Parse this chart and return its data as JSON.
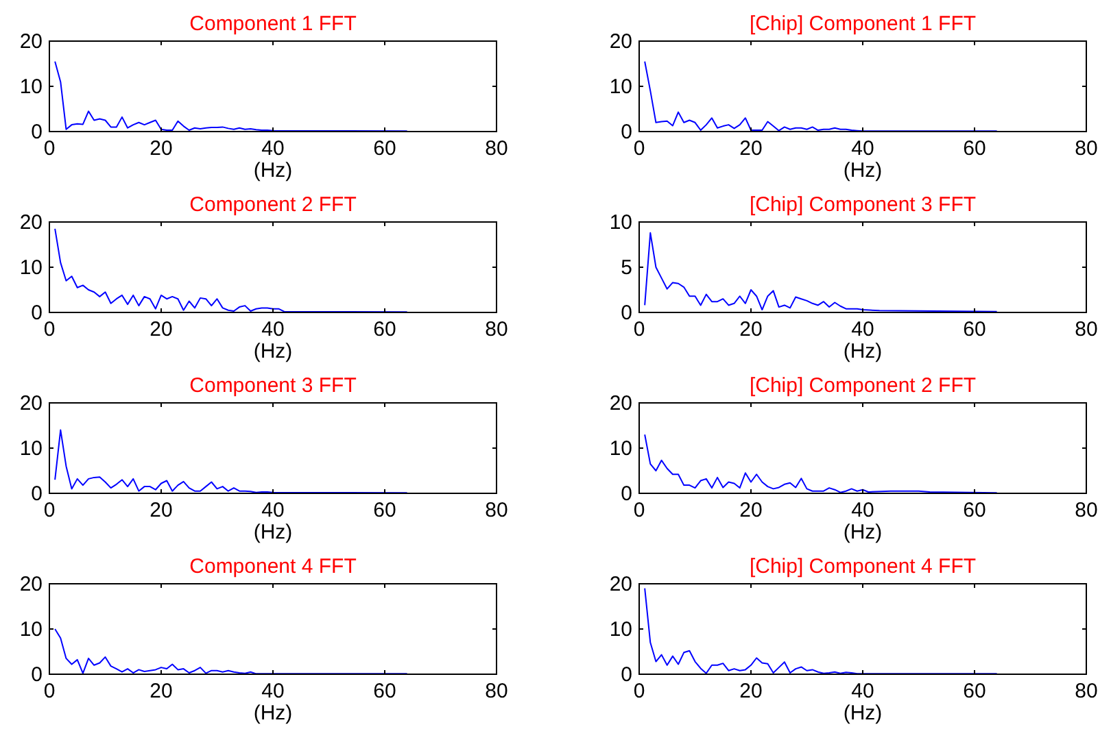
{
  "chart_data": [
    {
      "type": "line",
      "title": "Component 1 FFT",
      "xlabel": "(Hz)",
      "xlim": [
        0,
        80
      ],
      "xticks": [
        0,
        20,
        40,
        60,
        80
      ],
      "ylim": [
        0,
        20
      ],
      "yticks": [
        0,
        10,
        20
      ],
      "grid": false,
      "series": [
        {
          "color": "#0000ff",
          "x": [
            1,
            2,
            3,
            4,
            5,
            6,
            7,
            8,
            9,
            10,
            11,
            12,
            13,
            14,
            15,
            16,
            17,
            18,
            19,
            20,
            21,
            22,
            23,
            24,
            25,
            26,
            27,
            28,
            29,
            30,
            31,
            32,
            33,
            34,
            35,
            36,
            37,
            38,
            39,
            40,
            64
          ],
          "values": [
            15.5,
            11,
            0.5,
            1.5,
            1.7,
            1.6,
            4.5,
            2.5,
            2.8,
            2.5,
            1,
            1,
            3.2,
            0.8,
            1.5,
            2,
            1.5,
            2,
            2.5,
            0.5,
            0.3,
            0.3,
            2.3,
            1.2,
            0.3,
            0.8,
            0.6,
            0.8,
            0.9,
            0.9,
            1,
            0.7,
            0.5,
            0.8,
            0.5,
            0.6,
            0.4,
            0.3,
            0.3,
            0.2,
            0.1
          ]
        }
      ]
    },
    {
      "type": "line",
      "title": "[Chip] Component 1 FFT",
      "xlabel": "(Hz)",
      "xlim": [
        0,
        80
      ],
      "xticks": [
        0,
        20,
        40,
        60,
        80
      ],
      "ylim": [
        0,
        20
      ],
      "yticks": [
        0,
        10,
        20
      ],
      "grid": false,
      "series": [
        {
          "color": "#0000ff",
          "x": [
            1,
            2,
            3,
            4,
            5,
            6,
            7,
            8,
            9,
            10,
            11,
            12,
            13,
            14,
            15,
            16,
            17,
            18,
            19,
            20,
            21,
            22,
            23,
            24,
            25,
            26,
            27,
            28,
            29,
            30,
            31,
            32,
            33,
            34,
            35,
            36,
            37,
            38,
            39,
            40,
            64
          ],
          "values": [
            15.5,
            9,
            2,
            2.2,
            2.3,
            1.3,
            4.3,
            2,
            2.5,
            2,
            0.3,
            1.5,
            3,
            0.8,
            1.2,
            1.5,
            0.7,
            1.5,
            3,
            0.3,
            0.3,
            0.3,
            2.2,
            1.2,
            0.2,
            1,
            0.5,
            0.8,
            0.8,
            0.5,
            1,
            0.3,
            0.5,
            0.5,
            0.8,
            0.5,
            0.5,
            0.3,
            0.2,
            0.1,
            0.1
          ]
        }
      ]
    },
    {
      "type": "line",
      "title": "Component 2 FFT",
      "xlabel": "(Hz)",
      "xlim": [
        0,
        80
      ],
      "xticks": [
        0,
        20,
        40,
        60,
        80
      ],
      "ylim": [
        0,
        20
      ],
      "yticks": [
        0,
        10,
        20
      ],
      "grid": false,
      "series": [
        {
          "color": "#0000ff",
          "x": [
            1,
            2,
            3,
            4,
            5,
            6,
            7,
            8,
            9,
            10,
            11,
            12,
            13,
            14,
            15,
            16,
            17,
            18,
            19,
            20,
            21,
            22,
            23,
            24,
            25,
            26,
            27,
            28,
            29,
            30,
            31,
            32,
            33,
            34,
            35,
            36,
            37,
            38,
            39,
            40,
            41,
            42,
            64
          ],
          "values": [
            18.5,
            11,
            7,
            8,
            5.5,
            6,
            5,
            4.5,
            3.5,
            4.5,
            2,
            3,
            3.8,
            1.8,
            3.8,
            1.5,
            3.5,
            3,
            0.8,
            3.8,
            3,
            3.5,
            3,
            0.5,
            2.5,
            1,
            3.2,
            3,
            1.5,
            3,
            1,
            0.5,
            0.3,
            1.2,
            1.5,
            0.3,
            0.8,
            1,
            1,
            0.8,
            0.8,
            0.2,
            0.1
          ]
        }
      ]
    },
    {
      "type": "line",
      "title": "[Chip] Component 3 FFT",
      "xlabel": "(Hz)",
      "xlim": [
        0,
        80
      ],
      "xticks": [
        0,
        20,
        40,
        60,
        80
      ],
      "ylim": [
        0,
        10
      ],
      "yticks": [
        0,
        5,
        10
      ],
      "grid": false,
      "series": [
        {
          "color": "#0000ff",
          "x": [
            1,
            2,
            3,
            4,
            5,
            6,
            7,
            8,
            9,
            10,
            11,
            12,
            13,
            14,
            15,
            16,
            17,
            18,
            19,
            20,
            21,
            22,
            23,
            24,
            25,
            26,
            27,
            28,
            29,
            30,
            31,
            32,
            33,
            34,
            35,
            36,
            37,
            38,
            39,
            40,
            43,
            64
          ],
          "values": [
            0.8,
            8.8,
            5,
            3.8,
            2.6,
            3.3,
            3.2,
            2.8,
            1.8,
            1.8,
            0.8,
            2,
            1.2,
            1.2,
            1.5,
            0.8,
            1,
            1.8,
            1,
            2.5,
            1.8,
            0.3,
            1.8,
            2.4,
            0.6,
            0.8,
            0.5,
            1.7,
            1.5,
            1.3,
            1,
            0.8,
            1.2,
            0.6,
            1.1,
            0.7,
            0.4,
            0.4,
            0.4,
            0.3,
            0.2,
            0.1
          ]
        }
      ]
    },
    {
      "type": "line",
      "title": "Component 3 FFT",
      "xlabel": "(Hz)",
      "xlim": [
        0,
        80
      ],
      "xticks": [
        0,
        20,
        40,
        60,
        80
      ],
      "ylim": [
        0,
        20
      ],
      "yticks": [
        0,
        10,
        20
      ],
      "grid": false,
      "series": [
        {
          "color": "#0000ff",
          "x": [
            1,
            2,
            3,
            4,
            5,
            6,
            7,
            8,
            9,
            10,
            11,
            12,
            13,
            14,
            15,
            16,
            17,
            18,
            19,
            20,
            21,
            22,
            23,
            24,
            25,
            26,
            27,
            28,
            29,
            30,
            31,
            32,
            33,
            34,
            35,
            36,
            37,
            38,
            39,
            40,
            64
          ],
          "values": [
            3,
            14,
            6,
            1,
            3.2,
            1.8,
            3.2,
            3.5,
            3.6,
            2.5,
            1.2,
            2,
            3,
            1.5,
            3.2,
            0.5,
            1.5,
            1.5,
            0.8,
            2.2,
            2.8,
            0.5,
            1.8,
            2.6,
            1.2,
            0.5,
            0.5,
            1.5,
            2.5,
            1,
            1.5,
            0.5,
            1.2,
            0.5,
            0.5,
            0.4,
            0.2,
            0.3,
            0.3,
            0.2,
            0.1
          ]
        }
      ]
    },
    {
      "type": "line",
      "title": "[Chip] Component 2 FFT",
      "xlabel": "(Hz)",
      "xlim": [
        0,
        80
      ],
      "xticks": [
        0,
        20,
        40,
        60,
        80
      ],
      "ylim": [
        0,
        20
      ],
      "yticks": [
        0,
        10,
        20
      ],
      "grid": false,
      "series": [
        {
          "color": "#0000ff",
          "x": [
            1,
            2,
            3,
            4,
            5,
            6,
            7,
            8,
            9,
            10,
            11,
            12,
            13,
            14,
            15,
            16,
            17,
            18,
            19,
            20,
            21,
            22,
            23,
            24,
            25,
            26,
            27,
            28,
            29,
            30,
            31,
            32,
            33,
            34,
            35,
            36,
            37,
            38,
            39,
            40,
            41,
            45,
            50,
            52,
            64
          ],
          "values": [
            13,
            6.5,
            5,
            7.3,
            5.5,
            4.2,
            4.2,
            1.8,
            1.8,
            1.2,
            2.8,
            3.2,
            1.2,
            3.5,
            1.3,
            2.5,
            2.2,
            1.2,
            4.5,
            2.5,
            4.2,
            2.5,
            1.5,
            1,
            1.3,
            2,
            2.3,
            1.3,
            3.3,
            1,
            0.5,
            0.5,
            0.5,
            1.2,
            0.8,
            0.2,
            0.5,
            1,
            0.5,
            0.8,
            0.3,
            0.5,
            0.5,
            0.3,
            0.1
          ]
        }
      ]
    },
    {
      "type": "line",
      "title": "Component 4 FFT",
      "xlabel": "(Hz)",
      "xlim": [
        0,
        80
      ],
      "xticks": [
        0,
        20,
        40,
        60,
        80
      ],
      "ylim": [
        0,
        20
      ],
      "yticks": [
        0,
        10,
        20
      ],
      "grid": false,
      "series": [
        {
          "color": "#0000ff",
          "x": [
            1,
            2,
            3,
            4,
            5,
            6,
            7,
            8,
            9,
            10,
            11,
            12,
            13,
            14,
            15,
            16,
            17,
            18,
            19,
            20,
            21,
            22,
            23,
            24,
            25,
            26,
            27,
            28,
            29,
            30,
            31,
            32,
            33,
            34,
            35,
            36,
            37,
            38,
            39,
            40,
            64
          ],
          "values": [
            10,
            8,
            3.5,
            2.2,
            3.2,
            0.2,
            3.5,
            2,
            2.5,
            3.8,
            1.8,
            1.2,
            0.5,
            1.2,
            0.3,
            1,
            0.6,
            0.8,
            1,
            1.5,
            1.2,
            2.2,
            1,
            1.2,
            0.3,
            0.8,
            1.5,
            0.2,
            0.8,
            0.8,
            0.5,
            0.8,
            0.5,
            0.3,
            0.2,
            0.5,
            0.1,
            0.1,
            0.1,
            0.1,
            0.1
          ]
        }
      ]
    },
    {
      "type": "line",
      "title": "[Chip] Component 4 FFT",
      "xlabel": "(Hz)",
      "xlim": [
        0,
        80
      ],
      "xticks": [
        0,
        20,
        40,
        60,
        80
      ],
      "ylim": [
        0,
        20
      ],
      "yticks": [
        0,
        10,
        20
      ],
      "grid": false,
      "series": [
        {
          "color": "#0000ff",
          "x": [
            1,
            2,
            3,
            4,
            5,
            6,
            7,
            8,
            9,
            10,
            11,
            12,
            13,
            14,
            15,
            16,
            17,
            18,
            19,
            20,
            21,
            22,
            23,
            24,
            25,
            26,
            27,
            28,
            29,
            30,
            31,
            32,
            33,
            34,
            35,
            36,
            37,
            38,
            39,
            40,
            64
          ],
          "values": [
            19,
            7,
            2.8,
            4.3,
            2,
            4,
            2.2,
            4.8,
            5.2,
            2.8,
            1.3,
            0.2,
            2,
            2,
            2.4,
            0.8,
            1.2,
            0.8,
            1,
            2,
            3.6,
            2.5,
            2.3,
            0.3,
            1.5,
            2.7,
            0.3,
            1.2,
            1.6,
            0.8,
            1,
            0.5,
            0.2,
            0.3,
            0.5,
            0.2,
            0.4,
            0.3,
            0.1,
            0.1,
            0.1
          ]
        }
      ]
    }
  ]
}
